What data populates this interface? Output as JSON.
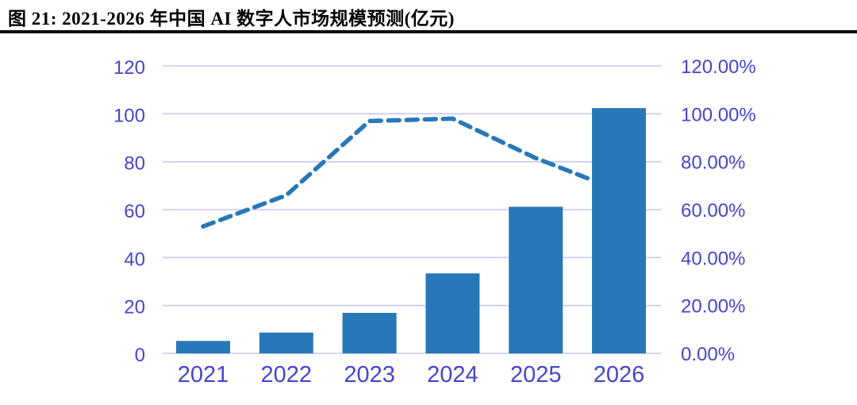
{
  "figure": {
    "title": "图 21: 2021-2026 年中国 AI 数字人市场规模预测(亿元)"
  },
  "chart_data": {
    "type": "combo",
    "title": "2021-2026 年中国 AI 数字人市场规模预测(亿元)",
    "categories": [
      "2021",
      "2022",
      "2023",
      "2024",
      "2025",
      "2026"
    ],
    "series": [
      {
        "type": "bar",
        "axis": "left",
        "values": [
          5.2,
          8.7,
          16.9,
          33.4,
          61.2,
          102.4
        ]
      },
      {
        "type": "line",
        "axis": "right",
        "dashed": true,
        "values_percent": [
          53,
          66,
          97,
          98,
          81.5,
          68
        ]
      }
    ],
    "left_axis": {
      "range": [
        0,
        120
      ],
      "ticks": [
        "120",
        "100",
        "80",
        "60",
        "40",
        "20",
        "0"
      ]
    },
    "right_axis": {
      "range_percent": [
        0,
        120
      ],
      "ticks": [
        "120.00%",
        "100.00%",
        "80.00%",
        "60.00%",
        "40.00%",
        "20.00%",
        "0.00%"
      ]
    },
    "grid": "horizontal",
    "legend": "none",
    "colors": {
      "bar": "#2878b9",
      "line": "#2878b9",
      "axis_label": "#4545cd",
      "gridline": "#c7c7f2",
      "title_rule": "#0b0b10"
    }
  }
}
